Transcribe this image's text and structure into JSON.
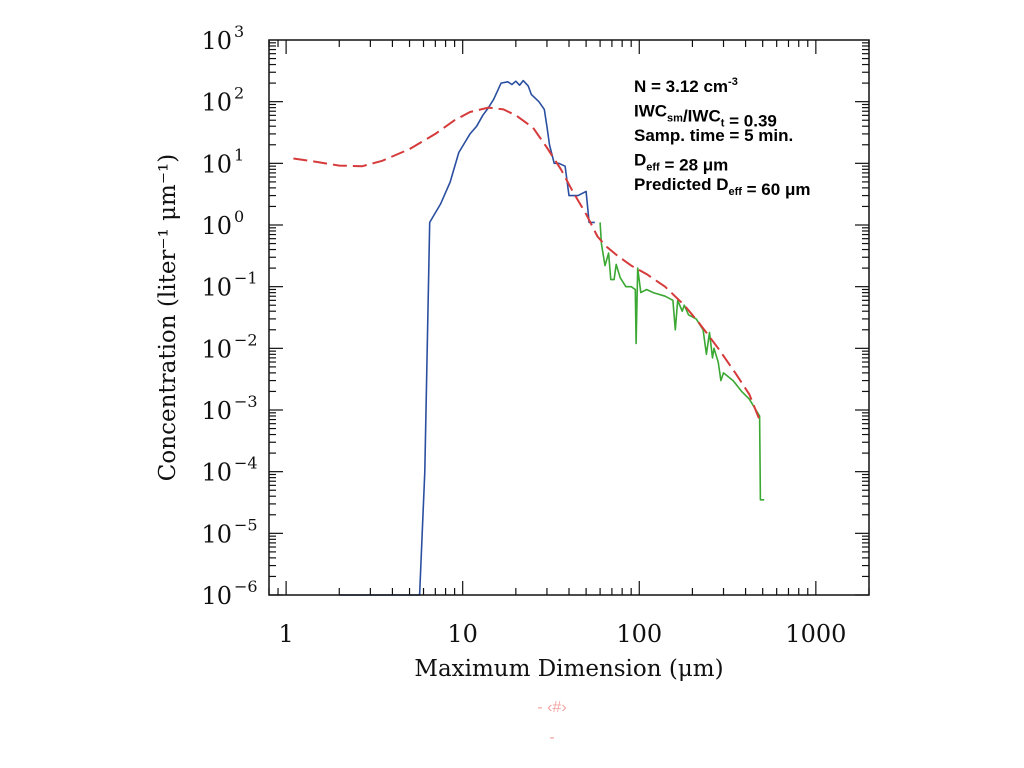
{
  "chart_data": {
    "type": "line",
    "xscale": "log",
    "yscale": "log",
    "xlim": [
      0.8,
      2000
    ],
    "ylim": [
      1e-06,
      1000
    ],
    "xlabel": "Maximum Dimension (μm)",
    "ylabel": "Concentration (liter⁻¹ μm⁻¹)",
    "x_ticks": [
      {
        "value": 1,
        "label": "1"
      },
      {
        "value": 10,
        "label": "10"
      },
      {
        "value": 100,
        "label": "100"
      },
      {
        "value": 1000,
        "label": "1000"
      }
    ],
    "y_ticks": [
      {
        "value": 1000,
        "base": "10",
        "exp": "3"
      },
      {
        "value": 100,
        "base": "10",
        "exp": "2"
      },
      {
        "value": 10,
        "base": "10",
        "exp": "1"
      },
      {
        "value": 1,
        "base": "10",
        "exp": "0"
      },
      {
        "value": 0.1,
        "base": "10",
        "exp": "−1"
      },
      {
        "value": 0.01,
        "base": "10",
        "exp": "−2"
      },
      {
        "value": 0.001,
        "base": "10",
        "exp": "−3"
      },
      {
        "value": 0.0001,
        "base": "10",
        "exp": "−4"
      },
      {
        "value": 1e-05,
        "base": "10",
        "exp": "−5"
      },
      {
        "value": 1e-06,
        "base": "10",
        "exp": "−6"
      }
    ],
    "series": [
      {
        "color": "#2b4fa0",
        "style": "solid",
        "points": [
          [
            2.0,
            1e-06
          ],
          [
            5.7,
            1e-06
          ],
          [
            6.1,
            0.0001
          ],
          [
            6.5,
            1.1
          ],
          [
            7.5,
            2.2
          ],
          [
            8.5,
            5
          ],
          [
            9.5,
            15
          ],
          [
            11,
            30
          ],
          [
            12,
            40
          ],
          [
            13,
            60
          ],
          [
            14,
            80
          ],
          [
            15,
            110
          ],
          [
            16.5,
            200
          ],
          [
            18,
            210
          ],
          [
            19,
            190
          ],
          [
            20,
            215
          ],
          [
            21,
            185
          ],
          [
            22,
            220
          ],
          [
            23.5,
            180
          ],
          [
            24.5,
            130
          ],
          [
            27,
            100
          ],
          [
            29,
            75
          ],
          [
            30,
            40
          ],
          [
            31,
            20
          ],
          [
            33,
            10
          ],
          [
            35,
            10
          ],
          [
            38,
            9
          ],
          [
            40,
            3
          ],
          [
            45,
            3
          ],
          [
            50,
            3.5
          ],
          [
            52,
            1.1
          ],
          [
            56,
            1.1
          ]
        ]
      },
      {
        "color": "#3aa832",
        "style": "solid",
        "points": [
          [
            60,
            1.1
          ],
          [
            61,
            0.5
          ],
          [
            64,
            0.22
          ],
          [
            67,
            0.35
          ],
          [
            69,
            0.13
          ],
          [
            72,
            0.13
          ],
          [
            74,
            0.23
          ],
          [
            78,
            0.14
          ],
          [
            84,
            0.1
          ],
          [
            90,
            0.1
          ],
          [
            95,
            0.09
          ],
          [
            96,
            0.012
          ],
          [
            98,
            0.2
          ],
          [
            102,
            0.08
          ],
          [
            110,
            0.09
          ],
          [
            120,
            0.08
          ],
          [
            140,
            0.07
          ],
          [
            155,
            0.06
          ],
          [
            160,
            0.02
          ],
          [
            165,
            0.06
          ],
          [
            175,
            0.04
          ],
          [
            180,
            0.05
          ],
          [
            190,
            0.035
          ],
          [
            210,
            0.03
          ],
          [
            230,
            0.02
          ],
          [
            240,
            0.008
          ],
          [
            250,
            0.018
          ],
          [
            260,
            0.007
          ],
          [
            265,
            0.01
          ],
          [
            280,
            0.006
          ],
          [
            290,
            0.003
          ],
          [
            300,
            0.004
          ],
          [
            340,
            0.003
          ],
          [
            380,
            0.002
          ],
          [
            420,
            0.0015
          ],
          [
            480,
            0.0008
          ],
          [
            485,
            3.5e-05
          ],
          [
            510,
            3.5e-05
          ]
        ]
      },
      {
        "color": "#d63a3a",
        "style": "dashed",
        "points": [
          [
            1.1,
            12
          ],
          [
            1.5,
            10.5
          ],
          [
            2.0,
            9.2
          ],
          [
            2.7,
            9.0
          ],
          [
            3.5,
            11
          ],
          [
            5,
            17
          ],
          [
            7,
            30
          ],
          [
            9,
            50
          ],
          [
            11,
            68
          ],
          [
            14,
            80
          ],
          [
            17,
            75
          ],
          [
            20,
            60
          ],
          [
            25,
            38
          ],
          [
            30,
            18
          ],
          [
            36,
            8
          ],
          [
            42,
            3.5
          ],
          [
            50,
            1.5
          ],
          [
            58,
            0.65
          ],
          [
            65,
            0.45
          ],
          [
            75,
            0.32
          ],
          [
            90,
            0.22
          ],
          [
            110,
            0.16
          ],
          [
            140,
            0.1
          ],
          [
            180,
            0.05
          ],
          [
            220,
            0.025
          ],
          [
            280,
            0.01
          ],
          [
            350,
            0.004
          ],
          [
            420,
            0.0018
          ],
          [
            490,
            0.0006
          ]
        ]
      }
    ],
    "annotations": [
      {
        "segments": [
          {
            "t": "N = 3.12 cm"
          },
          {
            "t": "-3",
            "sup": true
          }
        ]
      },
      {
        "segments": [
          {
            "t": "IWC"
          },
          {
            "t": "sm",
            "sub": true
          },
          {
            "t": "/IWC"
          },
          {
            "t": "t",
            "sub": true
          },
          {
            "t": " = 0.39"
          }
        ]
      },
      {
        "segments": [
          {
            "t": "Samp. time = 5 min."
          }
        ]
      },
      {
        "segments": [
          {
            "t": "D"
          },
          {
            "t": "eff",
            "sub": true
          },
          {
            "t": " = 28 μm"
          }
        ]
      },
      {
        "segments": [
          {
            "t": "Predicted D"
          },
          {
            "t": "eff",
            "sub": true
          },
          {
            "t": " = 60 μm"
          }
        ]
      }
    ]
  },
  "footer": {
    "line1": "- ‹#›",
    "line2": "-"
  }
}
